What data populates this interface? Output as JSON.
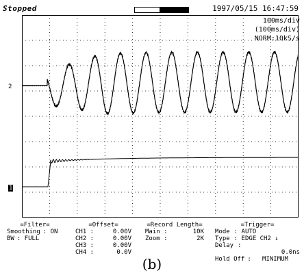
{
  "header": {
    "status": "Stopped",
    "datetime": "1997/05/15  16:47:59"
  },
  "timebase": {
    "line1": "100ms/div",
    "line2": "(100ms/div)",
    "line3": "NORM:10kS/s"
  },
  "channel_markers": {
    "ch2": "2",
    "ch1": "1"
  },
  "filter": {
    "title": "=Filter=",
    "rows": [
      {
        "label": "Smoothing",
        "value": ": ON"
      },
      {
        "label": "BW",
        "value": ": FULL"
      }
    ]
  },
  "offset": {
    "title": "=Offset=",
    "rows": [
      {
        "label": "CH1 :",
        "value": "0.00V"
      },
      {
        "label": "CH2 :",
        "value": "0.00V"
      },
      {
        "label": "CH3 :",
        "value": "0.00V"
      },
      {
        "label": "CH4 :",
        "value": "0.0V"
      }
    ]
  },
  "record_length": {
    "title": "=Record Length=",
    "rows": [
      {
        "label": "Main :",
        "value": "10K"
      },
      {
        "label": "Zoom :",
        "value": "2K"
      }
    ]
  },
  "trigger": {
    "title": "=Trigger=",
    "rows": [
      {
        "label": "Mode",
        "value": ": AUTO"
      },
      {
        "label": "Type",
        "value": ": EDGE CH2 ↓"
      },
      {
        "label": "Delay",
        "value": ":"
      },
      {
        "label": "",
        "value": "0.0ns"
      },
      {
        "label": "Hold Off",
        "value": ":   MINIMUM"
      }
    ]
  },
  "caption": "(b)",
  "colors": {
    "trace": "#000000",
    "grid": "#000000",
    "background": "#ffffff"
  },
  "icons": {
    "trigger_slope": "falling-edge-icon"
  }
}
